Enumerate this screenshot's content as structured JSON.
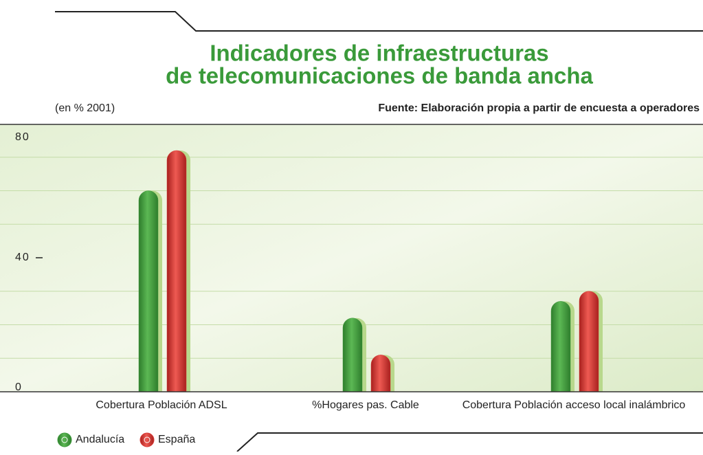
{
  "chart_data": {
    "type": "bar",
    "title": [
      "Indicadores de infraestructuras",
      "de telecomunicaciones de banda ancha"
    ],
    "subtitle": "(en % 2001)",
    "source": "Fuente: Elaboración propia a partir de encuesta a operadores",
    "categories": [
      "Cobertura Población ADSL",
      "%Hogares pas. Cable",
      "Cobertura Población acceso local inalámbrico"
    ],
    "series": [
      {
        "name": "Andalucía",
        "color": "#3f9a3c",
        "values": [
          60,
          22,
          27
        ]
      },
      {
        "name": "España",
        "color": "#d83a36",
        "values": [
          72,
          11,
          30
        ]
      }
    ],
    "ylim": [
      0,
      80
    ],
    "yticks": [
      0,
      40,
      80
    ],
    "minor_grid": [
      10,
      20,
      30,
      50,
      60,
      70
    ],
    "grid": true,
    "legend": "bottom-left"
  }
}
